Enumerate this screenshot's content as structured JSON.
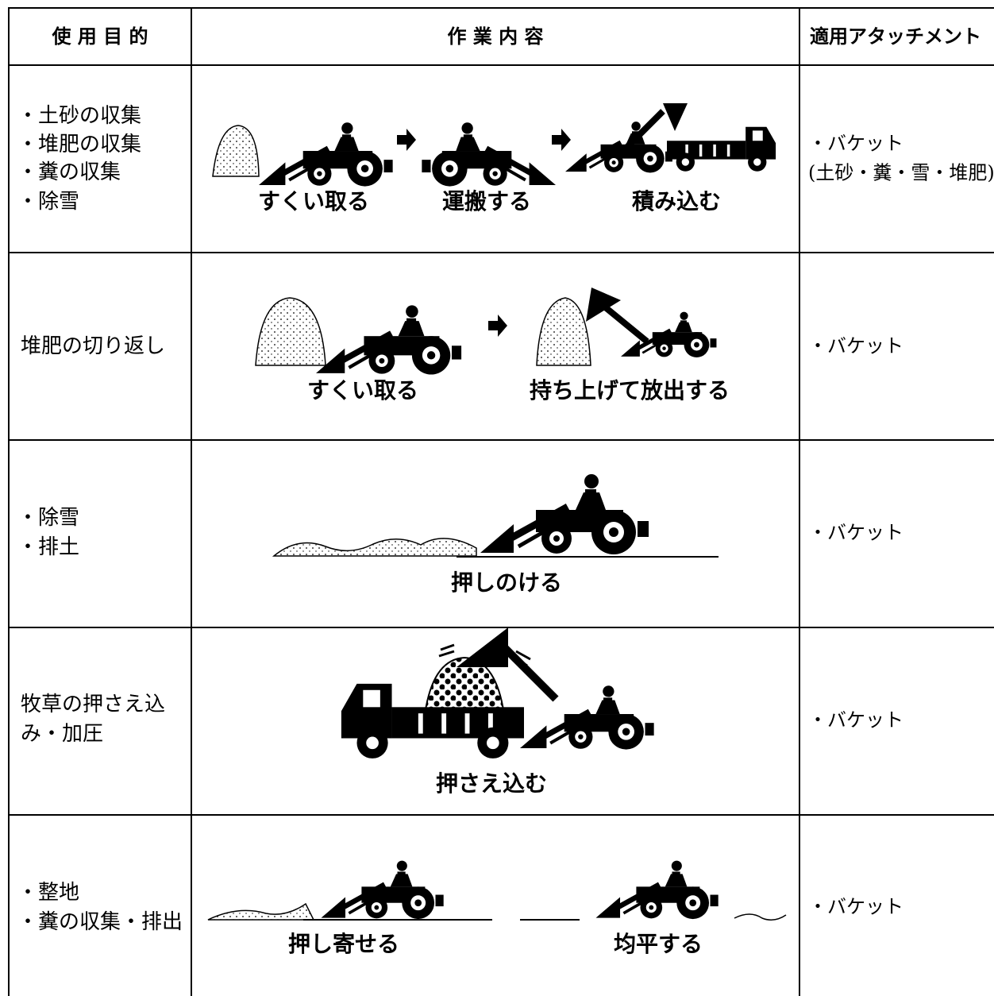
{
  "header": [
    "使 用 目 的",
    "作 業 内 容",
    "適用アタッチメント"
  ],
  "rows": [
    {
      "purpose": [
        "・土砂の収集",
        "・堆肥の収集",
        "・糞の収集",
        "・除雪"
      ],
      "work": [
        "すくい取る",
        "運搬する",
        "積み込む"
      ],
      "attachment": [
        "・バケット",
        "(土砂・糞・雪・堆肥)"
      ]
    },
    {
      "purpose": [
        "堆肥の切り返し"
      ],
      "work": [
        "すくい取る",
        "持ち上げて放出する"
      ],
      "attachment": [
        "・バケット"
      ]
    },
    {
      "purpose": [
        "・除雪",
        "・排土"
      ],
      "work": [
        "押しのける"
      ],
      "attachment": [
        "・バケット"
      ]
    },
    {
      "purpose": [
        "牧草の押さえ込",
        "み・加圧"
      ],
      "work": [
        "押さえ込む"
      ],
      "attachment": [
        "・バケット"
      ]
    },
    {
      "purpose": [
        "・整地",
        "・糞の収集・排出"
      ],
      "work": [
        "押し寄せる",
        "均平する"
      ],
      "attachment": [
        "・バケット"
      ]
    }
  ]
}
